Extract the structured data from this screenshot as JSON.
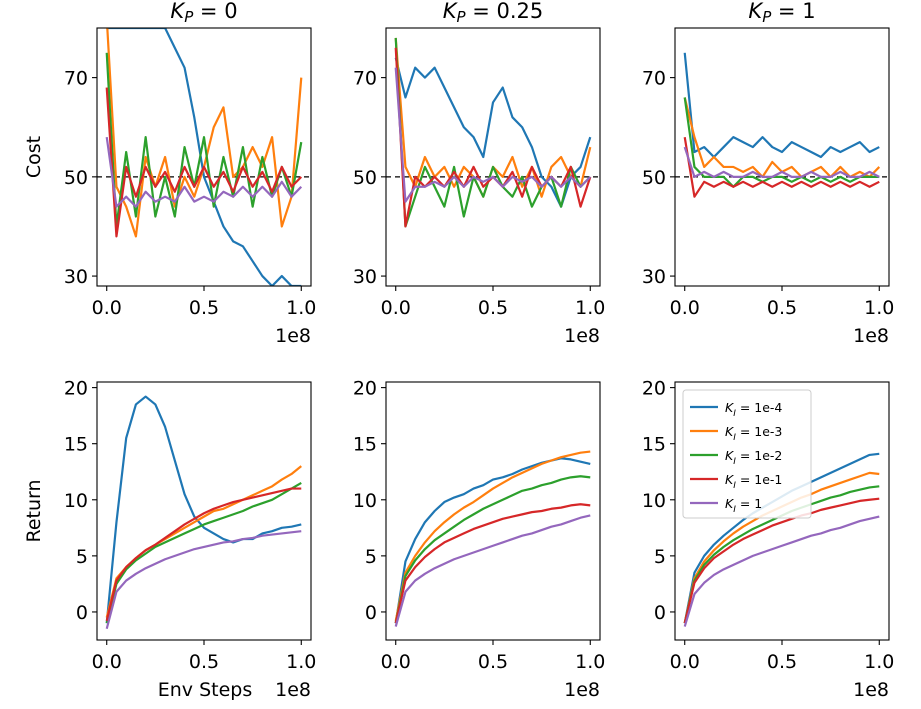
{
  "chart_data": {
    "type": "line",
    "x_offset_label": "1e8",
    "x_ticks": [
      0.0,
      0.5,
      1.0
    ],
    "x_tick_labels": [
      "0.0",
      "0.5",
      "1.0"
    ],
    "x_range": [
      -0.05,
      1.05
    ],
    "xlabel": "Env Steps",
    "row_labels": [
      "Cost",
      "Return"
    ],
    "column_titles": [
      {
        "base": "K",
        "sub": "P",
        "rest": " = 0"
      },
      {
        "base": "K",
        "sub": "P",
        "rest": " = 0.25"
      },
      {
        "base": "K",
        "sub": "P",
        "rest": " = 1"
      }
    ],
    "cost_axis": {
      "ylim": [
        28,
        80
      ],
      "ticks": [
        30,
        50,
        70
      ],
      "threshold": 50
    },
    "return_axis": {
      "ylim": [
        -2.5,
        20.5
      ],
      "ticks": [
        0,
        5,
        10,
        15,
        20
      ]
    },
    "legend": {
      "location": "upper-left",
      "panel": 5,
      "entries": [
        {
          "base": "K",
          "sub": "I",
          "rest": " = 1e-4"
        },
        {
          "base": "K",
          "sub": "I",
          "rest": " = 1e-3"
        },
        {
          "base": "K",
          "sub": "I",
          "rest": " = 1e-2"
        },
        {
          "base": "K",
          "sub": "I",
          "rest": " = 1e-1"
        },
        {
          "base": "K",
          "sub": "I",
          "rest": " = 1"
        }
      ]
    },
    "colors": [
      "#1f77b4",
      "#ff7f0e",
      "#2ca02c",
      "#d62728",
      "#9467bd"
    ],
    "x": [
      0.0,
      0.05,
      0.1,
      0.15,
      0.2,
      0.25,
      0.3,
      0.35,
      0.4,
      0.45,
      0.5,
      0.55,
      0.6,
      0.65,
      0.7,
      0.75,
      0.8,
      0.85,
      0.9,
      0.95,
      1.0
    ],
    "panels": [
      {
        "row": "cost",
        "col": 0,
        "series": [
          [
            80,
            80,
            80,
            80,
            80,
            80,
            80,
            76,
            72,
            62,
            50,
            45,
            40,
            37,
            36,
            33,
            30,
            28,
            30,
            28,
            28
          ],
          [
            82,
            48,
            44,
            38,
            54,
            48,
            54,
            44,
            50,
            46,
            52,
            60,
            64,
            50,
            52,
            56,
            52,
            58,
            40,
            46,
            70
          ],
          [
            75,
            40,
            55,
            42,
            58,
            42,
            50,
            42,
            56,
            48,
            58,
            44,
            54,
            46,
            56,
            44,
            54,
            46,
            52,
            46,
            57
          ],
          [
            68,
            38,
            52,
            46,
            52,
            48,
            51,
            47,
            52,
            48,
            52,
            48,
            51,
            47,
            52,
            48,
            51,
            47,
            52,
            48,
            50
          ],
          [
            58,
            44,
            46,
            44,
            47,
            45,
            46,
            45,
            48,
            45,
            46,
            45,
            47,
            46,
            48,
            46,
            48,
            46,
            49,
            46,
            48
          ]
        ]
      },
      {
        "row": "cost",
        "col": 1,
        "series": [
          [
            74,
            66,
            72,
            70,
            72,
            68,
            64,
            60,
            58,
            54,
            65,
            68,
            62,
            60,
            56,
            50,
            48,
            44,
            50,
            52,
            58
          ],
          [
            78,
            52,
            48,
            54,
            50,
            52,
            48,
            52,
            50,
            46,
            52,
            50,
            54,
            48,
            52,
            46,
            52,
            54,
            50,
            48,
            56
          ],
          [
            78,
            40,
            46,
            52,
            48,
            44,
            52,
            42,
            50,
            46,
            52,
            48,
            46,
            50,
            44,
            48,
            50,
            44,
            52,
            48,
            50
          ],
          [
            76,
            40,
            50,
            48,
            50,
            48,
            51,
            48,
            52,
            48,
            50,
            48,
            51,
            46,
            52,
            48,
            50,
            48,
            52,
            44,
            50
          ],
          [
            72,
            45,
            48,
            48,
            49,
            48,
            50,
            48,
            50,
            49,
            50,
            48,
            50,
            49,
            50,
            48,
            50,
            48,
            50,
            48,
            50
          ]
        ]
      },
      {
        "row": "cost",
        "col": 2,
        "series": [
          [
            75,
            55,
            56,
            54,
            56,
            58,
            57,
            56,
            58,
            56,
            55,
            57,
            56,
            55,
            54,
            56,
            55,
            56,
            57,
            55,
            56
          ],
          [
            66,
            58,
            52,
            54,
            52,
            52,
            51,
            52,
            50,
            53,
            51,
            52,
            50,
            51,
            52,
            50,
            52,
            50,
            51,
            50,
            52
          ],
          [
            66,
            52,
            50,
            50,
            50,
            48,
            50,
            50,
            49,
            50,
            50,
            49,
            50,
            49,
            50,
            49,
            50,
            49,
            50,
            50,
            50
          ],
          [
            58,
            46,
            49,
            48,
            49,
            48,
            49,
            48,
            49,
            48,
            49,
            48,
            49,
            48,
            49,
            48,
            49,
            48,
            49,
            48,
            49
          ],
          [
            56,
            50,
            51,
            50,
            51,
            50,
            50,
            51,
            50,
            50,
            51,
            50,
            50,
            51,
            50,
            50,
            51,
            50,
            50,
            51,
            50
          ]
        ]
      },
      {
        "row": "return",
        "col": 0,
        "series": [
          [
            -1.0,
            8.0,
            15.5,
            18.5,
            19.2,
            18.5,
            16.5,
            13.5,
            10.5,
            8.5,
            7.5,
            7.0,
            6.5,
            6.2,
            6.5,
            6.5,
            7.0,
            7.2,
            7.5,
            7.6,
            7.8
          ],
          [
            -0.5,
            3.0,
            4.0,
            4.8,
            5.5,
            6.0,
            6.5,
            7.0,
            7.5,
            8.0,
            8.5,
            9.0,
            9.2,
            9.6,
            10.0,
            10.4,
            10.8,
            11.2,
            11.8,
            12.3,
            13.0
          ],
          [
            -1.0,
            2.5,
            3.8,
            4.6,
            5.2,
            5.8,
            6.2,
            6.6,
            7.0,
            7.4,
            7.8,
            8.1,
            8.4,
            8.7,
            9.0,
            9.4,
            9.7,
            10.0,
            10.5,
            11.0,
            11.5
          ],
          [
            -0.8,
            2.8,
            4.0,
            4.8,
            5.5,
            6.0,
            6.6,
            7.2,
            7.8,
            8.3,
            8.8,
            9.2,
            9.5,
            9.8,
            10.0,
            10.2,
            10.4,
            10.6,
            10.8,
            11.0,
            11.0
          ],
          [
            -1.5,
            1.8,
            2.8,
            3.4,
            3.9,
            4.3,
            4.7,
            5.0,
            5.3,
            5.6,
            5.8,
            6.0,
            6.2,
            6.3,
            6.5,
            6.6,
            6.8,
            6.9,
            7.0,
            7.1,
            7.2
          ]
        ]
      },
      {
        "row": "return",
        "col": 1,
        "series": [
          [
            -1.0,
            4.5,
            6.5,
            8.0,
            9.0,
            9.8,
            10.2,
            10.5,
            11.0,
            11.3,
            11.8,
            12.0,
            12.3,
            12.7,
            13.0,
            13.3,
            13.5,
            13.7,
            13.6,
            13.4,
            13.2
          ],
          [
            -0.8,
            3.5,
            5.0,
            6.2,
            7.2,
            8.0,
            8.7,
            9.3,
            9.8,
            10.4,
            11.0,
            11.5,
            12.0,
            12.4,
            12.8,
            13.2,
            13.5,
            13.8,
            14.0,
            14.2,
            14.3
          ],
          [
            -1.0,
            3.2,
            4.6,
            5.6,
            6.4,
            7.0,
            7.6,
            8.2,
            8.7,
            9.2,
            9.6,
            10.0,
            10.4,
            10.8,
            11.0,
            11.3,
            11.5,
            11.8,
            12.0,
            12.1,
            12.0
          ],
          [
            -1.0,
            2.8,
            4.0,
            4.9,
            5.6,
            6.2,
            6.6,
            7.0,
            7.4,
            7.7,
            8.0,
            8.3,
            8.5,
            8.7,
            8.9,
            9.0,
            9.2,
            9.3,
            9.5,
            9.6,
            9.5
          ],
          [
            -1.3,
            1.8,
            2.8,
            3.4,
            3.9,
            4.3,
            4.7,
            5.0,
            5.3,
            5.6,
            5.9,
            6.2,
            6.5,
            6.8,
            7.0,
            7.3,
            7.6,
            7.8,
            8.1,
            8.4,
            8.6
          ]
        ]
      },
      {
        "row": "return",
        "col": 2,
        "series": [
          [
            -1.0,
            3.5,
            5.0,
            6.0,
            6.8,
            7.5,
            8.2,
            8.8,
            9.3,
            9.8,
            10.3,
            10.8,
            11.2,
            11.6,
            12.0,
            12.4,
            12.8,
            13.2,
            13.6,
            14.0,
            14.1
          ],
          [
            -1.0,
            3.0,
            4.5,
            5.5,
            6.3,
            7.0,
            7.6,
            8.1,
            8.6,
            9.0,
            9.4,
            9.8,
            10.2,
            10.5,
            10.9,
            11.2,
            11.5,
            11.8,
            12.1,
            12.4,
            12.3
          ],
          [
            -1.0,
            2.8,
            4.2,
            5.1,
            5.8,
            6.4,
            6.9,
            7.4,
            7.8,
            8.2,
            8.6,
            9.0,
            9.3,
            9.6,
            9.9,
            10.2,
            10.4,
            10.7,
            10.9,
            11.1,
            11.2
          ],
          [
            -1.0,
            2.6,
            3.9,
            4.8,
            5.4,
            6.0,
            6.5,
            6.9,
            7.3,
            7.7,
            8.0,
            8.3,
            8.6,
            8.8,
            9.1,
            9.3,
            9.5,
            9.7,
            9.9,
            10.0,
            10.1
          ],
          [
            -1.3,
            1.6,
            2.6,
            3.3,
            3.8,
            4.2,
            4.6,
            5.0,
            5.3,
            5.6,
            5.9,
            6.2,
            6.5,
            6.8,
            7.0,
            7.3,
            7.5,
            7.8,
            8.1,
            8.3,
            8.5
          ]
        ]
      }
    ]
  }
}
